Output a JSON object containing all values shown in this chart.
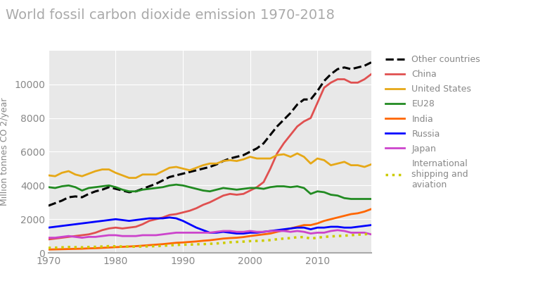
{
  "title": "World fossil carbon dioxide emission 1970-2018",
  "ylabel": "Million tonnes CO 2/year",
  "xlim": [
    1970,
    2018
  ],
  "ylim": [
    0,
    12000
  ],
  "yticks": [
    0,
    2000,
    4000,
    6000,
    8000,
    10000
  ],
  "xticks": [
    1970,
    1980,
    1990,
    2000,
    2010
  ],
  "background_color": "#ffffff",
  "plot_bg_color": "#e8e8e8",
  "grid_color": "#ffffff",
  "title_color": "#aaaaaa",
  "tick_color": "#888888",
  "label_color": "#888888",
  "series": {
    "Other countries": {
      "color": "#000000",
      "linestyle": "--",
      "linewidth": 2.2,
      "data_x": [
        1970,
        1971,
        1972,
        1973,
        1974,
        1975,
        1976,
        1977,
        1978,
        1979,
        1980,
        1981,
        1982,
        1983,
        1984,
        1985,
        1986,
        1987,
        1988,
        1989,
        1990,
        1991,
        1992,
        1993,
        1994,
        1995,
        1996,
        1997,
        1998,
        1999,
        2000,
        2001,
        2002,
        2003,
        2004,
        2005,
        2006,
        2007,
        2008,
        2009,
        2010,
        2011,
        2012,
        2013,
        2014,
        2015,
        2016,
        2017,
        2018
      ],
      "data_y": [
        2800,
        2950,
        3100,
        3300,
        3350,
        3300,
        3500,
        3650,
        3750,
        3900,
        3800,
        3700,
        3600,
        3650,
        3800,
        3950,
        4100,
        4300,
        4500,
        4600,
        4700,
        4800,
        4900,
        5000,
        5100,
        5250,
        5450,
        5600,
        5700,
        5800,
        6000,
        6200,
        6500,
        7000,
        7500,
        7900,
        8300,
        8800,
        9100,
        9100,
        9600,
        10200,
        10600,
        10900,
        11000,
        10900,
        11000,
        11100,
        11300
      ]
    },
    "China": {
      "color": "#e05050",
      "linestyle": "-",
      "linewidth": 2.0,
      "data_x": [
        1970,
        1971,
        1972,
        1973,
        1974,
        1975,
        1976,
        1977,
        1978,
        1979,
        1980,
        1981,
        1982,
        1983,
        1984,
        1985,
        1986,
        1987,
        1988,
        1989,
        1990,
        1991,
        1992,
        1993,
        1994,
        1995,
        1996,
        1997,
        1998,
        1999,
        2000,
        2001,
        2002,
        2003,
        2004,
        2005,
        2006,
        2007,
        2008,
        2009,
        2010,
        2011,
        2012,
        2013,
        2014,
        2015,
        2016,
        2017,
        2018
      ],
      "data_y": [
        800,
        850,
        900,
        950,
        1000,
        1050,
        1100,
        1200,
        1350,
        1450,
        1500,
        1450,
        1500,
        1550,
        1700,
        1900,
        2000,
        2100,
        2250,
        2300,
        2400,
        2500,
        2650,
        2850,
        3000,
        3200,
        3400,
        3500,
        3450,
        3500,
        3700,
        3900,
        4200,
        5000,
        5900,
        6500,
        7000,
        7500,
        7800,
        8000,
        8900,
        9800,
        10100,
        10300,
        10300,
        10100,
        10100,
        10300,
        10600
      ]
    },
    "United States": {
      "color": "#e6a817",
      "linestyle": "-",
      "linewidth": 2.0,
      "data_x": [
        1970,
        1971,
        1972,
        1973,
        1974,
        1975,
        1976,
        1977,
        1978,
        1979,
        1980,
        1981,
        1982,
        1983,
        1984,
        1985,
        1986,
        1987,
        1988,
        1989,
        1990,
        1991,
        1992,
        1993,
        1994,
        1995,
        1996,
        1997,
        1998,
        1999,
        2000,
        2001,
        2002,
        2003,
        2004,
        2005,
        2006,
        2007,
        2008,
        2009,
        2010,
        2011,
        2012,
        2013,
        2014,
        2015,
        2016,
        2017,
        2018
      ],
      "data_y": [
        4600,
        4550,
        4750,
        4850,
        4650,
        4550,
        4700,
        4850,
        4950,
        4950,
        4750,
        4600,
        4450,
        4450,
        4650,
        4650,
        4650,
        4850,
        5050,
        5100,
        5000,
        4900,
        5050,
        5200,
        5300,
        5300,
        5450,
        5500,
        5450,
        5550,
        5700,
        5600,
        5600,
        5600,
        5800,
        5850,
        5700,
        5900,
        5700,
        5300,
        5600,
        5500,
        5200,
        5300,
        5400,
        5200,
        5200,
        5100,
        5250
      ]
    },
    "EU28": {
      "color": "#228b22",
      "linestyle": "-",
      "linewidth": 2.0,
      "data_x": [
        1970,
        1971,
        1972,
        1973,
        1974,
        1975,
        1976,
        1977,
        1978,
        1979,
        1980,
        1981,
        1982,
        1983,
        1984,
        1985,
        1986,
        1987,
        1988,
        1989,
        1990,
        1991,
        1992,
        1993,
        1994,
        1995,
        1996,
        1997,
        1998,
        1999,
        2000,
        2001,
        2002,
        2003,
        2004,
        2005,
        2006,
        2007,
        2008,
        2009,
        2010,
        2011,
        2012,
        2013,
        2014,
        2015,
        2016,
        2017,
        2018
      ],
      "data_y": [
        3900,
        3850,
        3950,
        4000,
        3900,
        3700,
        3850,
        3900,
        3950,
        4000,
        3900,
        3750,
        3650,
        3650,
        3750,
        3800,
        3850,
        3900,
        4000,
        4050,
        4000,
        3900,
        3800,
        3700,
        3650,
        3750,
        3850,
        3800,
        3750,
        3800,
        3850,
        3850,
        3800,
        3900,
        3950,
        3950,
        3900,
        3950,
        3850,
        3500,
        3650,
        3600,
        3450,
        3400,
        3250,
        3200,
        3200,
        3200,
        3200
      ]
    },
    "India": {
      "color": "#ff6600",
      "linestyle": "-",
      "linewidth": 2.0,
      "data_x": [
        1970,
        1971,
        1972,
        1973,
        1974,
        1975,
        1976,
        1977,
        1978,
        1979,
        1980,
        1981,
        1982,
        1983,
        1984,
        1985,
        1986,
        1987,
        1988,
        1989,
        1990,
        1991,
        1992,
        1993,
        1994,
        1995,
        1996,
        1997,
        1998,
        1999,
        2000,
        2001,
        2002,
        2003,
        2004,
        2005,
        2006,
        2007,
        2008,
        2009,
        2010,
        2011,
        2012,
        2013,
        2014,
        2015,
        2016,
        2017,
        2018
      ],
      "data_y": [
        200,
        210,
        220,
        230,
        240,
        250,
        270,
        280,
        300,
        320,
        340,
        360,
        380,
        400,
        430,
        460,
        490,
        520,
        560,
        600,
        620,
        650,
        680,
        720,
        750,
        800,
        850,
        880,
        900,
        940,
        1000,
        1050,
        1100,
        1150,
        1250,
        1350,
        1450,
        1550,
        1650,
        1650,
        1750,
        1900,
        2000,
        2100,
        2200,
        2300,
        2350,
        2450,
        2600
      ]
    },
    "Russia": {
      "color": "#0000ff",
      "linestyle": "-",
      "linewidth": 2.0,
      "data_x": [
        1970,
        1971,
        1972,
        1973,
        1974,
        1975,
        1976,
        1977,
        1978,
        1979,
        1980,
        1981,
        1982,
        1983,
        1984,
        1985,
        1986,
        1987,
        1988,
        1989,
        1990,
        1991,
        1992,
        1993,
        1994,
        1995,
        1996,
        1997,
        1998,
        1999,
        2000,
        2001,
        2002,
        2003,
        2004,
        2005,
        2006,
        2007,
        2008,
        2009,
        2010,
        2011,
        2012,
        2013,
        2014,
        2015,
        2016,
        2017,
        2018
      ],
      "data_y": [
        1500,
        1550,
        1600,
        1650,
        1700,
        1750,
        1800,
        1850,
        1900,
        1950,
        2000,
        1950,
        1900,
        1950,
        2000,
        2050,
        2050,
        2050,
        2100,
        2050,
        1900,
        1700,
        1500,
        1350,
        1200,
        1200,
        1250,
        1200,
        1150,
        1150,
        1200,
        1200,
        1250,
        1300,
        1350,
        1400,
        1450,
        1500,
        1500,
        1400,
        1500,
        1500,
        1550,
        1550,
        1500,
        1500,
        1550,
        1600,
        1650
      ]
    },
    "Japan": {
      "color": "#cc44cc",
      "linestyle": "-",
      "linewidth": 2.0,
      "data_x": [
        1970,
        1971,
        1972,
        1973,
        1974,
        1975,
        1976,
        1977,
        1978,
        1979,
        1980,
        1981,
        1982,
        1983,
        1984,
        1985,
        1986,
        1987,
        1988,
        1989,
        1990,
        1991,
        1992,
        1993,
        1994,
        1995,
        1996,
        1997,
        1998,
        1999,
        2000,
        2001,
        2002,
        2003,
        2004,
        2005,
        2006,
        2007,
        2008,
        2009,
        2010,
        2011,
        2012,
        2013,
        2014,
        2015,
        2016,
        2017,
        2018
      ],
      "data_y": [
        900,
        900,
        950,
        1000,
        950,
        900,
        950,
        950,
        1000,
        1050,
        1050,
        1000,
        1000,
        1000,
        1050,
        1050,
        1050,
        1100,
        1150,
        1200,
        1200,
        1200,
        1200,
        1200,
        1200,
        1250,
        1300,
        1300,
        1250,
        1250,
        1300,
        1250,
        1250,
        1300,
        1300,
        1300,
        1250,
        1300,
        1250,
        1150,
        1200,
        1200,
        1300,
        1350,
        1300,
        1200,
        1200,
        1200,
        1100
      ]
    },
    "International\nshipping and\naviation": {
      "color": "#cccc00",
      "linestyle": ":",
      "linewidth": 2.5,
      "data_x": [
        1970,
        1971,
        1972,
        1973,
        1974,
        1975,
        1976,
        1977,
        1978,
        1979,
        1980,
        1981,
        1982,
        1983,
        1984,
        1985,
        1986,
        1987,
        1988,
        1989,
        1990,
        1991,
        1992,
        1993,
        1994,
        1995,
        1996,
        1997,
        1998,
        1999,
        2000,
        2001,
        2002,
        2003,
        2004,
        2005,
        2006,
        2007,
        2008,
        2009,
        2010,
        2011,
        2012,
        2013,
        2014,
        2015,
        2016,
        2017,
        2018
      ],
      "data_y": [
        300,
        310,
        330,
        350,
        340,
        330,
        350,
        360,
        380,
        400,
        390,
        380,
        370,
        370,
        380,
        390,
        400,
        420,
        450,
        470,
        490,
        490,
        510,
        520,
        540,
        560,
        590,
        630,
        650,
        670,
        700,
        710,
        730,
        760,
        810,
        850,
        880,
        930,
        940,
        850,
        900,
        950,
        980,
        1000,
        1020,
        1050,
        1080,
        1100,
        1150
      ]
    }
  },
  "legend_labels": [
    "Other countries",
    "China",
    "United States",
    "EU28",
    "India",
    "Russia",
    "Japan",
    "International\nshipping and\naviation"
  ]
}
